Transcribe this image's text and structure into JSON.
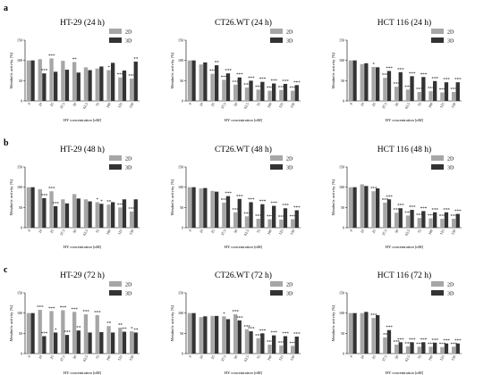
{
  "figure": {
    "row_labels": [
      "a",
      "b",
      "c"
    ],
    "colors": {
      "2D": "#a6a6a6",
      "3D": "#333333"
    }
  },
  "chart_data": [
    {
      "type": "bar",
      "title": "HT-29 (24 h)",
      "categories": [
        "0",
        "10",
        "25",
        "37.5",
        "50",
        "62.5",
        "75",
        "100",
        "125",
        "150"
      ],
      "series": [
        {
          "name": "2D",
          "values": [
            100,
            103,
            105,
            99,
            96,
            83,
            80,
            76,
            58,
            55
          ]
        },
        {
          "name": "3D",
          "values": [
            100,
            68,
            72,
            77,
            70,
            76,
            85,
            94,
            75,
            97
          ]
        }
      ],
      "stars_2D": [
        "",
        "",
        "***",
        "",
        "**",
        "",
        "",
        "*",
        "***",
        "***"
      ],
      "stars_3D": [
        "",
        "***",
        "",
        "",
        "",
        "",
        "",
        "",
        "",
        "**"
      ],
      "ylabel": "Metabolic activity [%]",
      "xlabel": "HY concentration [nM]",
      "ylim": [
        0,
        150
      ],
      "yticks": [
        0,
        50,
        100,
        150
      ]
    },
    {
      "type": "bar",
      "title": "CT26.WT (24 h)",
      "categories": [
        "0",
        "10",
        "25",
        "37.5",
        "50",
        "62.5",
        "75",
        "100",
        "125",
        "150"
      ],
      "series": [
        {
          "name": "2D",
          "values": [
            100,
            90,
            67,
            52,
            40,
            33,
            28,
            25,
            27,
            25
          ]
        },
        {
          "name": "3D",
          "values": [
            100,
            95,
            88,
            68,
            58,
            50,
            47,
            43,
            42,
            39
          ]
        }
      ],
      "stars_2D": [
        "",
        "",
        "***",
        "***",
        "***",
        "***",
        "***",
        "***",
        "***",
        "***"
      ],
      "stars_3D": [
        "",
        "",
        "**",
        "***",
        "***",
        "***",
        "***",
        "***",
        "***",
        "***"
      ],
      "ylabel": "Metabolic activity [%]",
      "xlabel": "HY concentration [nM]",
      "ylim": [
        0,
        150
      ],
      "yticks": [
        0,
        50,
        100,
        150
      ]
    },
    {
      "type": "bar",
      "title": "HCT 116 (24 h)",
      "categories": [
        "0",
        "10",
        "25",
        "37.5",
        "50",
        "62.5",
        "75",
        "100",
        "125",
        "150"
      ],
      "series": [
        {
          "name": "2D",
          "values": [
            100,
            91,
            84,
            57,
            35,
            28,
            22,
            24,
            21,
            22
          ]
        },
        {
          "name": "3D",
          "values": [
            100,
            93,
            83,
            74,
            71,
            61,
            59,
            49,
            46,
            46
          ]
        }
      ],
      "stars_2D": [
        "",
        "",
        "*",
        "***",
        "***",
        "***",
        "***",
        "***",
        "***",
        "***"
      ],
      "stars_3D": [
        "",
        "",
        "",
        "***",
        "***",
        "***",
        "***",
        "***",
        "***",
        "***"
      ],
      "ylabel": "Metabolic activity [%]",
      "xlabel": "HY concentration [nM]",
      "ylim": [
        0,
        150
      ],
      "yticks": [
        0,
        50,
        100,
        150
      ]
    },
    {
      "type": "bar",
      "title": "HT-29 (48 h)",
      "categories": [
        "0",
        "10",
        "25",
        "37.5",
        "50",
        "62.5",
        "75",
        "100",
        "125",
        "150"
      ],
      "series": [
        {
          "name": "2D",
          "values": [
            100,
            95,
            90,
            70,
            83,
            70,
            63,
            57,
            50,
            40
          ]
        },
        {
          "name": "3D",
          "values": [
            100,
            73,
            53,
            60,
            72,
            65,
            59,
            63,
            70,
            70
          ]
        }
      ],
      "stars_2D": [
        "",
        "",
        "***",
        "",
        "",
        "",
        "*",
        "**",
        "***",
        "***"
      ],
      "stars_3D": [
        "",
        "***",
        "***",
        "",
        "",
        "",
        "*",
        "",
        "",
        ""
      ],
      "ylabel": "Metabolic activity [%]",
      "xlabel": "HY concentration [nM]",
      "ylim": [
        0,
        150
      ],
      "yticks": [
        0,
        50,
        100,
        150
      ]
    },
    {
      "type": "bar",
      "title": "CT26.WT (48 h)",
      "categories": [
        "0",
        "10",
        "25",
        "37.5",
        "50",
        "62.5",
        "75",
        "100",
        "125",
        "150"
      ],
      "series": [
        {
          "name": "2D",
          "values": [
            100,
            97,
            91,
            62,
            38,
            28,
            22,
            21,
            20,
            21
          ]
        },
        {
          "name": "3D",
          "values": [
            100,
            98,
            89,
            78,
            71,
            63,
            58,
            54,
            48,
            43
          ]
        }
      ],
      "stars_2D": [
        "",
        "",
        "",
        "***",
        "***",
        "***",
        "***",
        "***",
        "***",
        "***"
      ],
      "stars_3D": [
        "",
        "",
        "",
        "***",
        "***",
        "***",
        "***",
        "***",
        "***",
        "***"
      ],
      "ylabel": "Metabolic activity [%]",
      "xlabel": "HY concentration [nM]",
      "ylim": [
        0,
        150
      ],
      "yticks": [
        0,
        50,
        100,
        150
      ]
    },
    {
      "type": "bar",
      "title": "HCT 116 (48 h)",
      "categories": [
        "0",
        "10",
        "25",
        "37.5",
        "50",
        "62.5",
        "75",
        "100",
        "125",
        "150"
      ],
      "series": [
        {
          "name": "2D",
          "values": [
            100,
            107,
            90,
            62,
            37,
            30,
            24,
            23,
            22,
            22
          ]
        },
        {
          "name": "3D",
          "values": [
            100,
            103,
            97,
            70,
            48,
            44,
            41,
            38,
            38,
            34
          ]
        }
      ],
      "stars_2D": [
        "",
        "",
        "***",
        "***",
        "***",
        "***",
        "***",
        "***",
        "***",
        "***"
      ],
      "stars_3D": [
        "",
        "",
        "",
        "***",
        "***",
        "***",
        "***",
        "***",
        "***",
        "***"
      ],
      "ylabel": "Metabolic activity [%]",
      "xlabel": "HY concentration [nM]",
      "ylim": [
        0,
        150
      ],
      "yticks": [
        0,
        50,
        100,
        150
      ]
    },
    {
      "type": "bar",
      "title": "HT-29 (72 h)",
      "categories": [
        "0",
        "10",
        "25",
        "37.5",
        "50",
        "62.5",
        "75",
        "100",
        "125",
        "150"
      ],
      "series": [
        {
          "name": "2D",
          "values": [
            100,
            108,
            105,
            107,
            103,
            97,
            95,
            68,
            64,
            55
          ]
        },
        {
          "name": "3D",
          "values": [
            100,
            43,
            52,
            46,
            57,
            52,
            53,
            52,
            54,
            52
          ]
        }
      ],
      "stars_2D": [
        "",
        "***",
        "***",
        "***",
        "***",
        "***",
        "***",
        "**",
        "**",
        "*"
      ],
      "stars_3D": [
        "",
        "***",
        "*",
        "***",
        "**",
        "",
        "",
        "",
        "**",
        "**"
      ],
      "ylabel": "Metabolic activity [%]",
      "xlabel": "HY concentration [nM]",
      "ylim": [
        0,
        150
      ],
      "yticks": [
        0,
        50,
        100,
        150
      ]
    },
    {
      "type": "bar",
      "title": "CT26.WT (72 h)",
      "categories": [
        "0",
        "10",
        "25",
        "37.5",
        "50",
        "62.5",
        "75",
        "100",
        "125",
        "150"
      ],
      "series": [
        {
          "name": "2D",
          "values": [
            100,
            90,
            93,
            92,
            97,
            60,
            38,
            22,
            20,
            19
          ]
        },
        {
          "name": "3D",
          "values": [
            100,
            92,
            93,
            85,
            82,
            55,
            50,
            45,
            43,
            42
          ]
        }
      ],
      "stars_2D": [
        "",
        "",
        "",
        "*",
        "***",
        "***",
        "***",
        "***",
        "***",
        "***"
      ],
      "stars_3D": [
        "",
        "",
        "",
        "",
        "***",
        "***",
        "***",
        "***",
        "***",
        "***"
      ],
      "ylabel": "Metabolic activity [%]",
      "xlabel": "HY concentration [nM]",
      "ylim": [
        0,
        150
      ],
      "yticks": [
        0,
        50,
        100,
        150
      ]
    },
    {
      "type": "bar",
      "title": "HCT 116 (72 h)",
      "categories": [
        "0",
        "10",
        "25",
        "37.5",
        "50",
        "62.5",
        "75",
        "100",
        "125",
        "150"
      ],
      "series": [
        {
          "name": "2D",
          "values": [
            100,
            100,
            88,
            40,
            22,
            18,
            17,
            17,
            16,
            17
          ]
        },
        {
          "name": "3D",
          "values": [
            100,
            103,
            95,
            58,
            28,
            28,
            28,
            27,
            25,
            25
          ]
        }
      ],
      "stars_2D": [
        "",
        "",
        "***",
        "**",
        "***",
        "***",
        "***",
        "***",
        "***",
        "***"
      ],
      "stars_3D": [
        "",
        "",
        "",
        "***",
        "***",
        "***",
        "***",
        "***",
        "***",
        "***"
      ],
      "ylabel": "Metabolic activity [%]",
      "xlabel": "HY concentration [nM]",
      "ylim": [
        0,
        150
      ],
      "yticks": [
        0,
        50,
        100,
        150
      ]
    }
  ]
}
